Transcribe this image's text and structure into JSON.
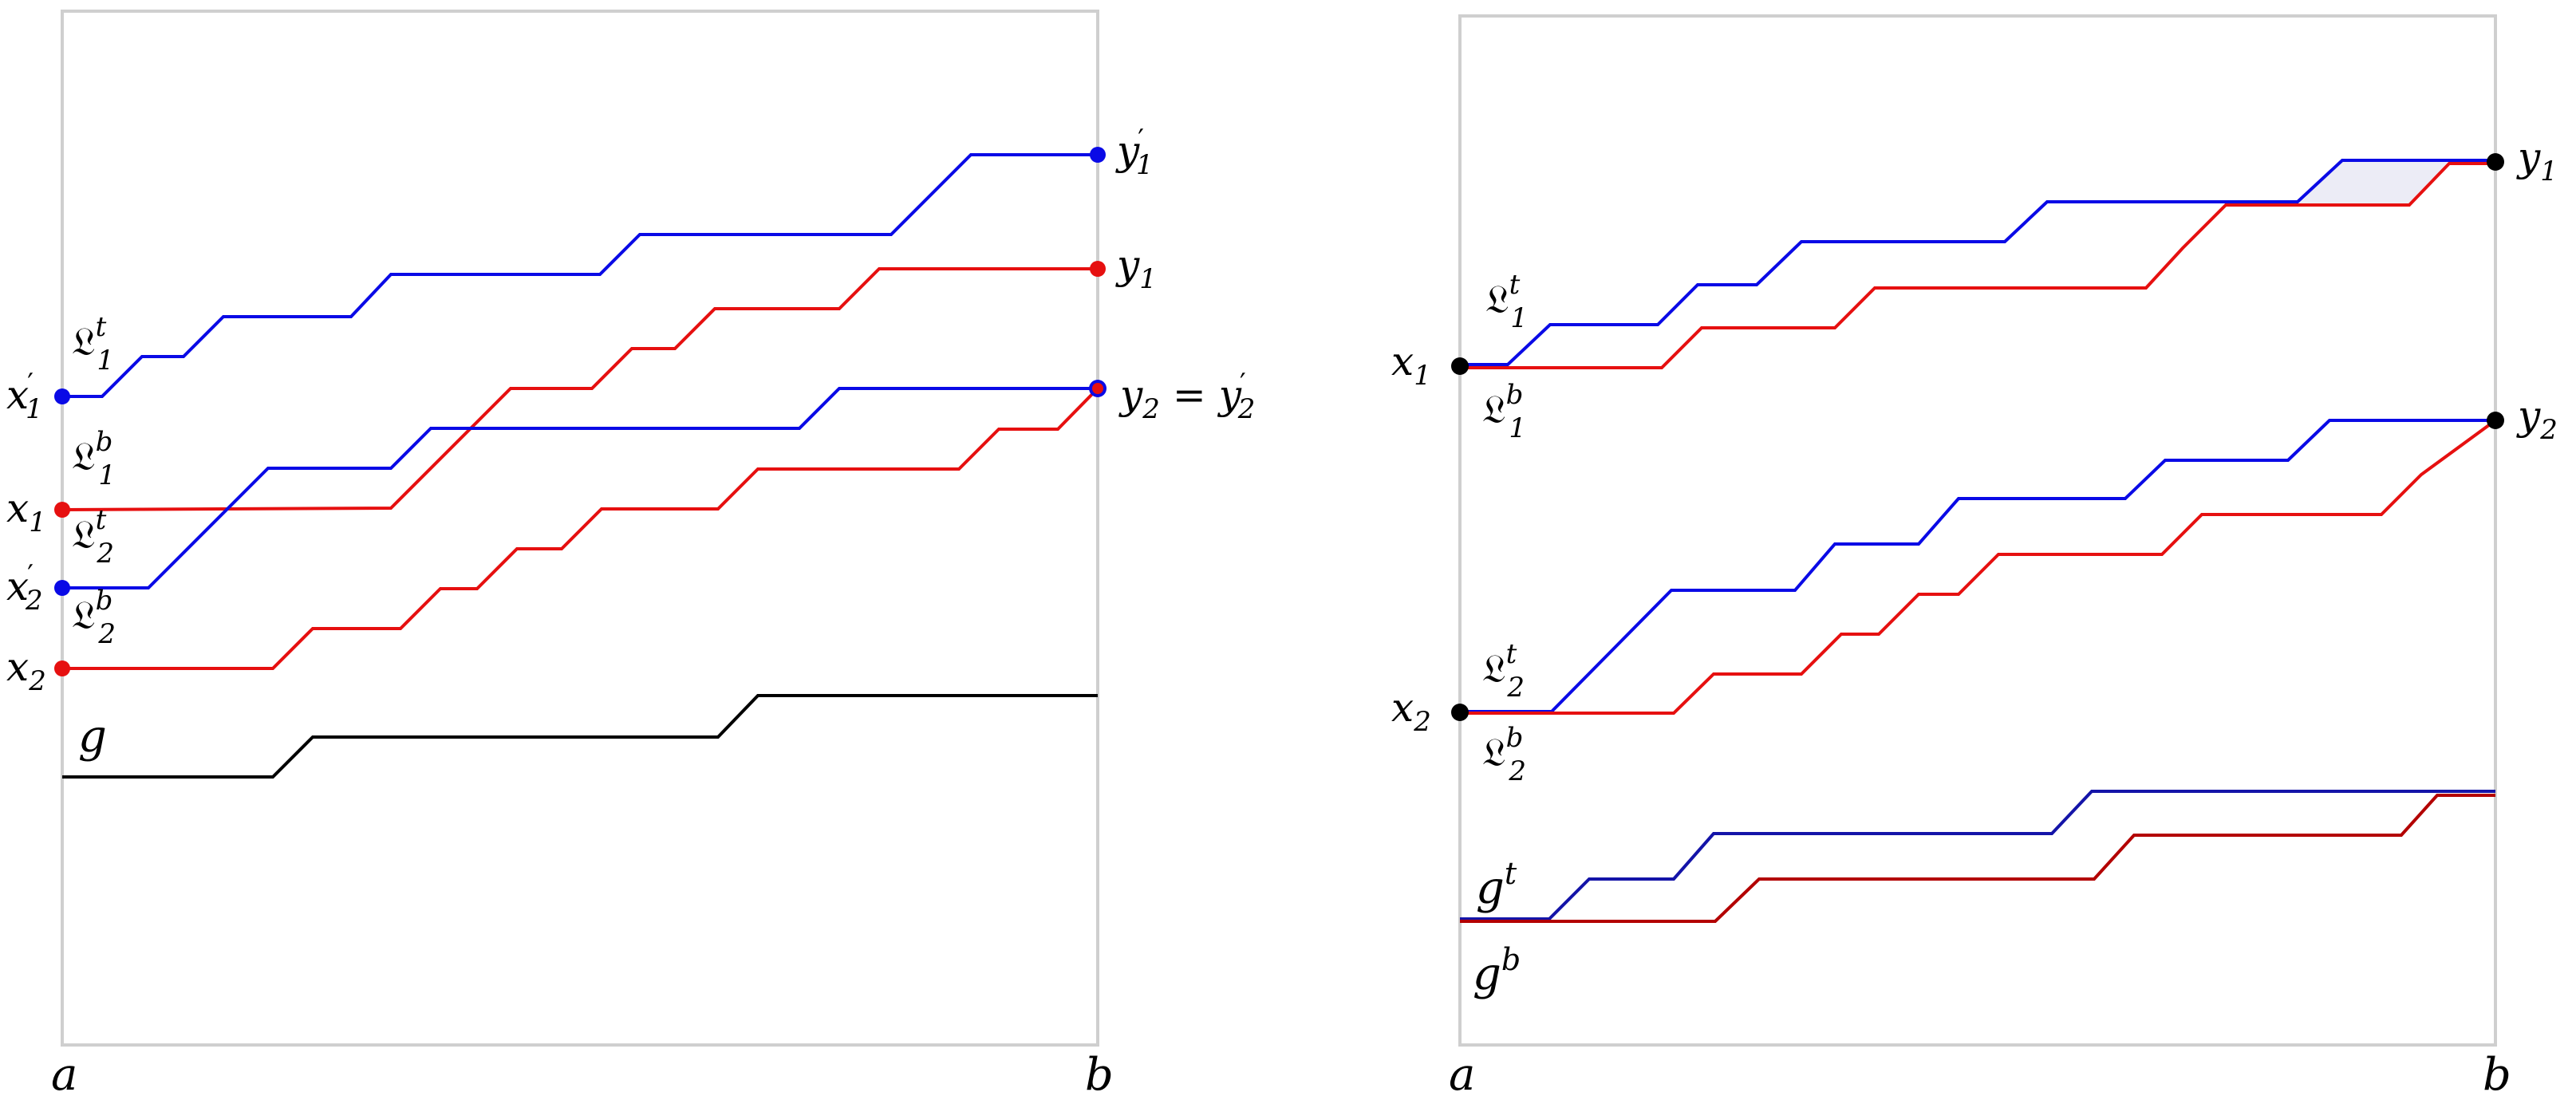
{
  "colors": {
    "blue": "#0a0ae6",
    "red": "#e61010",
    "black": "#000000",
    "darkred": "#b30000",
    "frame": "#cfcfcf"
  },
  "left_panel": {
    "axis_labels": {
      "a": "a",
      "b": "b"
    },
    "endpoints": [
      {
        "label": "x",
        "sub": "1",
        "prime": true,
        "side": "left",
        "color": "blue"
      },
      {
        "label": "x",
        "sub": "1",
        "prime": false,
        "side": "left",
        "color": "red"
      },
      {
        "label": "x",
        "sub": "2",
        "prime": true,
        "side": "left",
        "color": "blue"
      },
      {
        "label": "x",
        "sub": "2",
        "prime": false,
        "side": "left",
        "color": "red"
      },
      {
        "label": "y",
        "sub": "1",
        "prime": true,
        "side": "right",
        "color": "blue"
      },
      {
        "label": "y",
        "sub": "1",
        "prime": false,
        "side": "right",
        "color": "red"
      }
    ],
    "combined_endpoint": {
      "left": "y",
      "left_sub": "2",
      "eq": "=",
      "right": "y",
      "right_sub": "2",
      "right_prime": true
    },
    "curve_labels": [
      {
        "base": "𝔏",
        "sub": "1",
        "sup": "t"
      },
      {
        "base": "𝔏",
        "sub": "1",
        "sup": "b"
      },
      {
        "base": "𝔏",
        "sub": "2",
        "sup": "t"
      },
      {
        "base": "𝔏",
        "sub": "2",
        "sup": "b"
      }
    ],
    "g_label": "g"
  },
  "right_panel": {
    "axis_labels": {
      "a": "a",
      "b": "b"
    },
    "endpoints": [
      {
        "label": "x",
        "sub": "1",
        "side": "left"
      },
      {
        "label": "x",
        "sub": "2",
        "side": "left"
      },
      {
        "label": "y",
        "sub": "1",
        "side": "right"
      },
      {
        "label": "y",
        "sub": "2",
        "side": "right"
      }
    ],
    "curve_labels": [
      {
        "base": "𝔏",
        "sub": "1",
        "sup": "t"
      },
      {
        "base": "𝔏",
        "sub": "1",
        "sup": "b"
      },
      {
        "base": "𝔏",
        "sub": "2",
        "sup": "t"
      },
      {
        "base": "𝔏",
        "sub": "2",
        "sup": "b"
      }
    ],
    "g_labels": [
      {
        "base": "g",
        "sup": "t"
      },
      {
        "base": "g",
        "sup": "b"
      }
    ]
  }
}
